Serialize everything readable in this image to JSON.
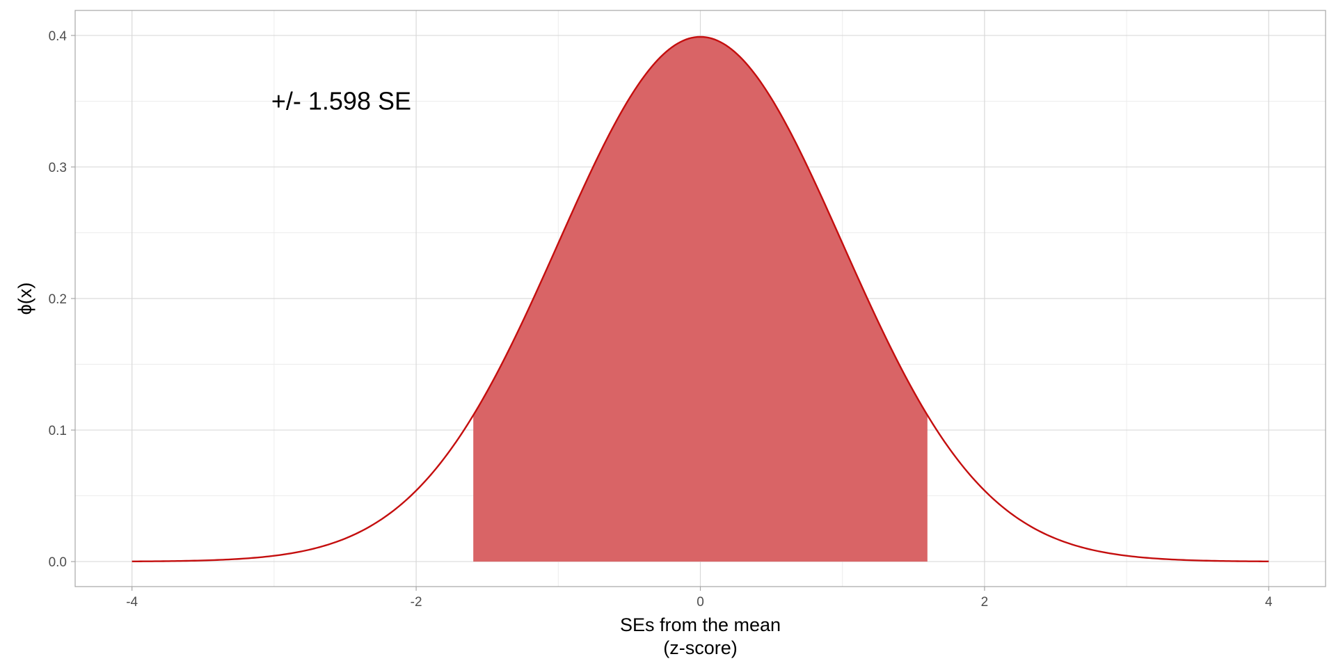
{
  "chart_data": {
    "type": "area",
    "distribution": "standard normal density",
    "x_range": [
      -4,
      4
    ],
    "xlim": [
      -4.4,
      4.4
    ],
    "ylim": [
      -0.019,
      0.419
    ],
    "x_ticks": [
      -4,
      -2,
      0,
      2,
      4
    ],
    "x_tick_labels": [
      "-4",
      "-2",
      "0",
      "2",
      "4"
    ],
    "y_ticks": [
      0.0,
      0.1,
      0.2,
      0.3,
      0.4
    ],
    "y_tick_labels": [
      "0.0",
      "0.1",
      "0.2",
      "0.3",
      "0.4"
    ],
    "shaded_interval": [
      -1.598,
      1.598
    ],
    "xlabel_lines": [
      "SEs from the mean",
      "(z-score)"
    ],
    "ylabel": "ϕ(x)",
    "annotation": {
      "text": "+/- 1.598 SE",
      "x": -3.0,
      "y": 0.35
    },
    "grid": true,
    "line_color": "#c40e0e",
    "fill_color": "#d96466"
  }
}
